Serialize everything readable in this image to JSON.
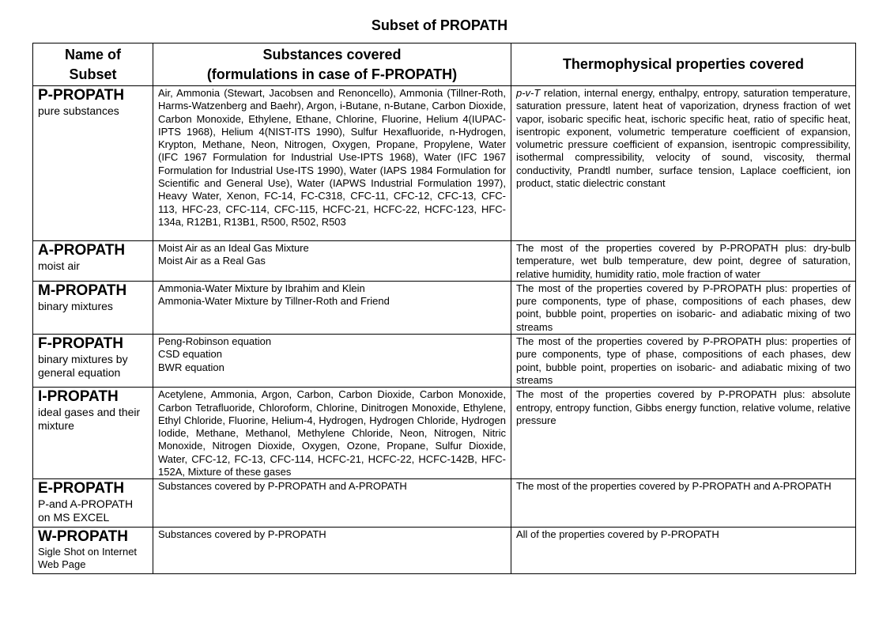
{
  "title": "Subset of PROPATH",
  "headers": {
    "name_line1": "Name of",
    "name_line2": "Subset",
    "substances_line1": "Substances covered",
    "substances_line2": "(formulations in case of F-PROPATH)",
    "properties": "Thermophysical properties covered"
  },
  "rows": [
    {
      "name": "P-PROPATH",
      "description": "pure substances",
      "substances": "Air, Ammonia (Stewart, Jacobsen and Renoncello), Ammonia (Tillner-Roth, Harms-Watzenberg and Baehr), Argon, i-Butane, n-Butane, Carbon Dioxide, Carbon Monoxide, Ethylene, Ethane, Chlorine, Fluorine, Helium 4(IUPAC-IPTS 1968), Helium 4(NIST-ITS 1990), Sulfur Hexafluoride, n-Hydrogen, Krypton, Methane, Neon, Nitrogen, Oxygen, Propane, Propylene, Water (IFC 1967 Formulation for Industrial Use-IPTS 1968), Water (IFC 1967 Formulation for Industrial Use-ITS 1990), Water (IAPS 1984 Formulation for Scientific and General Use), Water (IAPWS Industrial Formulation 1997), Heavy Water, Xenon, FC-14, FC-C318, CFC-11, CFC-12, CFC-13, CFC-113, HFC-23, CFC-114, CFC-115, HCFC-21, HCFC-22, HCFC-123, HFC-134a, R12B1, R13B1, R500, R502, R503",
      "properties_italic": "p-v-T",
      "properties": " relation, internal energy, enthalpy, entropy, saturation temperature, saturation pressure, latent heat of vaporization, dryness fraction of wet vapor, isobaric specific heat, ischoric specific heat, ratio of specific heat, isentropic exponent, volumetric temperature coefficient of expansion, volumetric pressure coefficient of expansion, isentropic compressibility, isothermal compressibility, velocity of sound, viscosity, thermal conductivity, Prandtl number, surface tension, Laplace coefficient, ion product, static dielectric constant"
    },
    {
      "name": "A-PROPATH",
      "description": "moist air",
      "substances_lines": [
        "Moist Air as an Ideal Gas Mixture",
        "Moist Air as a Real Gas"
      ],
      "properties": "The most of the properties covered by P-PROPATH plus: dry-bulb temperature, wet bulb temperature, dew point, degree of saturation, relative humidity, humidity ratio, mole fraction of water"
    },
    {
      "name": "M-PROPATH",
      "description": "binary mixtures",
      "substances_lines": [
        "Ammonia-Water Mixture by Ibrahim and Klein",
        "Ammonia-Water Mixture by Tillner-Roth and Friend"
      ],
      "properties": "The most of the properties covered by P-PROPATH plus: properties of pure components, type of phase, compositions of each phases, dew point, bubble point, properties on isobaric- and adiabatic mixing of two streams"
    },
    {
      "name": "F-PROPATH",
      "description": "binary mixtures by general equation",
      "substances_lines": [
        "Peng-Robinson equation",
        "CSD equation",
        "BWR equation"
      ],
      "properties": "The most of the properties covered by P-PROPATH plus: properties of pure components, type of phase, compositions of each phases, dew point, bubble point, properties on isobaric- and adiabatic mixing of two streams"
    },
    {
      "name": "I-PROPATH",
      "description": "ideal gases and their mixture",
      "substances": "Acetylene, Ammonia, Argon, Carbon, Carbon Dioxide, Carbon Monoxide, Carbon Tetrafluoride, Chloroform, Chlorine, Dinitrogen Monoxide, Ethylene, Ethyl Chloride, Fluorine, Helium-4, Hydrogen, Hydrogen Chloride, Hydrogen Iodide, Methane, Methanol, Methylene Chloride, Neon, Nitrogen, Nitric Monoxide, Nitrogen Dioxide, Oxygen, Ozone, Propane, Sulfur Dioxide, Water, CFC-12, FC-13, CFC-114, HCFC-21, HCFC-22, HCFC-142B, HFC-152A, Mixture of these gases",
      "properties": "The most of the properties covered by P-PROPATH plus: absolute entropy, entropy function, Gibbs energy function, relative volume, relative pressure"
    },
    {
      "name": "E-PROPATH",
      "description": "P-and A-PROPATH on MS EXCEL",
      "substances": "Substances covered by P-PROPATH and A-PROPATH",
      "properties": "The most of the properties covered by P-PROPATH and A-PROPATH"
    },
    {
      "name": "W-PROPATH",
      "description": "Sigle Shot on Internet Web Page",
      "substances": "Substances covered by P-PROPATH",
      "properties": "All of the properties covered by P-PROPATH"
    }
  ]
}
